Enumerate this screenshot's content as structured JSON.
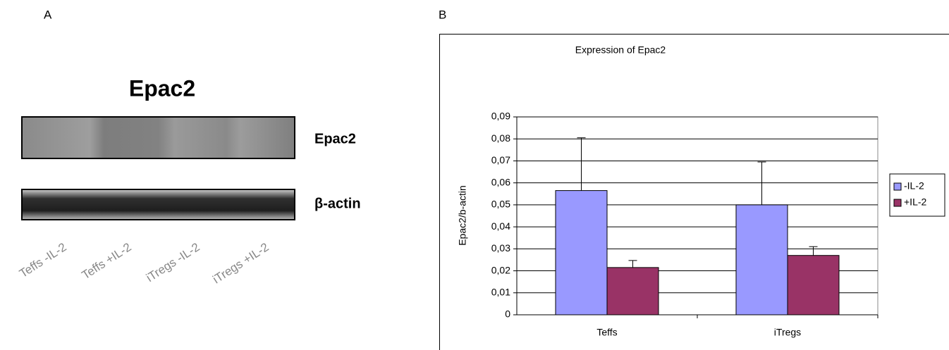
{
  "panel_a": {
    "label": "A",
    "title": "Epac2",
    "bands": [
      "Epac2",
      "β-actin"
    ],
    "lanes": [
      "Teffs -IL-2",
      "Teffs +IL-2",
      "iTregs -IL-2",
      "iTregs +IL-2"
    ]
  },
  "chart_data": {
    "type": "bar",
    "panel_label": "B",
    "title": "Expression of Epac2",
    "y_label": "Epac2/b-actin",
    "categories": [
      "Teffs",
      "iTregs"
    ],
    "series": [
      {
        "name": "-IL-2",
        "color": "#9999ff",
        "values": [
          0.0565,
          0.05
        ],
        "errors": [
          0.024,
          0.0195
        ]
      },
      {
        "name": "+IL-2",
        "color": "#993366",
        "values": [
          0.0215,
          0.027
        ],
        "errors": [
          0.0032,
          0.004
        ]
      }
    ],
    "ylim": [
      0,
      0.09
    ],
    "yticks": [
      0,
      {
        "value": 0.01,
        "label": "0,01"
      },
      {
        "value": 0.02,
        "label": "0,02"
      },
      {
        "value": 0.03,
        "label": "0,03"
      },
      {
        "value": 0.04,
        "label": "0,04"
      },
      {
        "value": 0.05,
        "label": "0,05"
      },
      {
        "value": 0.06,
        "label": "0,06"
      },
      {
        "value": 0.07,
        "label": "0,07"
      },
      {
        "value": 0.08,
        "label": "0,08"
      },
      {
        "value": 0.09,
        "label": "0,09"
      }
    ],
    "grid": true,
    "legend": "right"
  }
}
